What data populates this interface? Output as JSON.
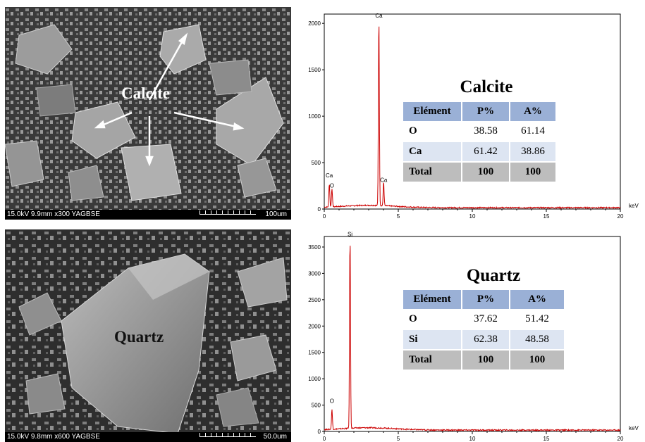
{
  "panels": [
    {
      "sem": {
        "params": "15.0kV 9.9mm x300 YAGBSE",
        "scale": "100um",
        "label": "Calcite"
      },
      "spectrum": {
        "title": "Calcite",
        "unit": "keV",
        "table": {
          "headers": [
            "Elément",
            "P%",
            "A%"
          ],
          "rows": [
            {
              "element": "O",
              "p": "38.58",
              "a": "61.14"
            },
            {
              "element": "Ca",
              "p": "61.42",
              "a": "38.86"
            },
            {
              "element": "Total",
              "p": "100",
              "a": "100"
            }
          ]
        }
      }
    },
    {
      "sem": {
        "params": "15.0kV 9.8mm x600 YAGBSE",
        "scale": "50.0um",
        "label": "Quartz"
      },
      "spectrum": {
        "title": "Quartz",
        "unit": "keV",
        "table": {
          "headers": [
            "Elément",
            "P%",
            "A%"
          ],
          "rows": [
            {
              "element": "O",
              "p": "37.62",
              "a": "51.42"
            },
            {
              "element": "Si",
              "p": "62.38",
              "a": "48.58"
            },
            {
              "element": "Total",
              "p": "100",
              "a": "100"
            }
          ]
        }
      }
    }
  ],
  "chart_data": [
    {
      "type": "line",
      "xlabel": "keV",
      "xlim": [
        0,
        20
      ],
      "ylim": [
        0,
        2100
      ],
      "xticks": [
        0,
        5,
        10,
        15,
        20
      ],
      "yticks": [
        0,
        500,
        1000,
        1500,
        2000
      ],
      "color": "#cc0000",
      "peaks": [
        {
          "label": "Ca",
          "x": 0.34,
          "y": 250
        },
        {
          "label": "O",
          "x": 0.52,
          "y": 200
        },
        {
          "label": "Ca",
          "x": 3.69,
          "y": 2030
        },
        {
          "label": "Ca",
          "x": 4.01,
          "y": 260
        }
      ]
    },
    {
      "type": "line",
      "xlabel": "keV",
      "xlim": [
        0,
        20
      ],
      "ylim": [
        0,
        3700
      ],
      "xticks": [
        0,
        5,
        10,
        15,
        20
      ],
      "yticks": [
        0,
        500,
        1000,
        1500,
        2000,
        2500,
        3000,
        3500
      ],
      "color": "#cc0000",
      "peaks": [
        {
          "label": "O",
          "x": 0.52,
          "y": 380
        },
        {
          "label": "Si",
          "x": 1.74,
          "y": 3650
        }
      ]
    }
  ]
}
